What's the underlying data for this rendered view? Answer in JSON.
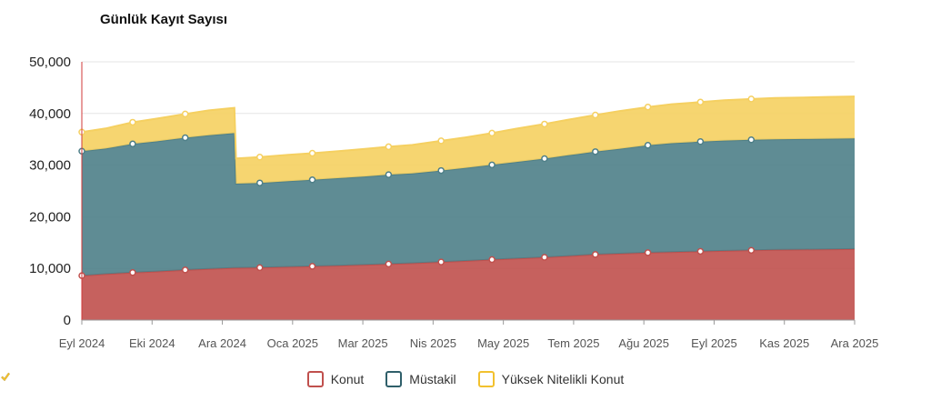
{
  "chart_data": {
    "type": "area",
    "title": "Günlük Kayıt Sayısı",
    "stacked": true,
    "x_ticks": [
      "Eyl 2024",
      "Eki 2024",
      "Ara 2024",
      "Oca 2025",
      "Mar 2025",
      "Nis 2025",
      "May 2025",
      "Tem 2025",
      "Ağu 2025",
      "Eyl 2025",
      "Kas 2025",
      "Ara 2025"
    ],
    "y_ticks": [
      "0",
      "10,000",
      "20,000",
      "30,000",
      "40,000",
      "50,000"
    ],
    "ylim": [
      0,
      50000
    ],
    "grid": true,
    "legend_position": "bottom",
    "x": [
      "2024-09-01",
      "2024-09-15",
      "2024-10-01",
      "2024-10-15",
      "2024-11-01",
      "2024-11-15",
      "2024-11-30",
      "2024-12-01",
      "2024-12-15",
      "2025-01-01",
      "2025-01-15",
      "2025-02-01",
      "2025-02-15",
      "2025-03-01",
      "2025-03-15",
      "2025-04-01",
      "2025-04-15",
      "2025-05-01",
      "2025-05-15",
      "2025-06-01",
      "2025-06-15",
      "2025-07-01",
      "2025-07-15",
      "2025-08-01",
      "2025-08-15",
      "2025-09-01",
      "2025-09-15",
      "2025-10-01",
      "2025-10-15",
      "2025-11-01",
      "2025-11-15",
      "2025-12-01"
    ],
    "marker_x": [
      "2024-09-01",
      "2024-10-01",
      "2024-11-01",
      "2024-12-15",
      "2025-01-15",
      "2025-03-01",
      "2025-04-01",
      "2025-05-01",
      "2025-06-01",
      "2025-07-01",
      "2025-08-01",
      "2025-09-01",
      "2025-10-01"
    ],
    "series": [
      {
        "name": "Konut",
        "color": "#c0504d",
        "values": [
          8600,
          8900,
          9200,
          9400,
          9700,
          9900,
          10100,
          10100,
          10150,
          10300,
          10400,
          10550,
          10700,
          10850,
          11000,
          11250,
          11450,
          11700,
          11900,
          12150,
          12400,
          12700,
          12850,
          13050,
          13150,
          13300,
          13400,
          13500,
          13600,
          13650,
          13700,
          13750
        ]
      },
      {
        "name": "Müstakil",
        "color": "#4e7f88",
        "values": [
          24100,
          24300,
          24900,
          25200,
          25600,
          25900,
          26100,
          16300,
          16400,
          16600,
          16750,
          16950,
          17100,
          17300,
          17400,
          17700,
          18000,
          18350,
          18700,
          19100,
          19500,
          19900,
          20300,
          20800,
          21100,
          21250,
          21350,
          21400,
          21400,
          21400,
          21400,
          21400
        ]
      },
      {
        "name": "Yüksek Nitelikli Konut",
        "color": "#f5d061",
        "values": [
          3700,
          3900,
          4200,
          4400,
          4600,
          4800,
          4900,
          4900,
          5000,
          5100,
          5150,
          5250,
          5350,
          5400,
          5500,
          5750,
          5900,
          6150,
          6450,
          6700,
          6900,
          7100,
          7300,
          7400,
          7550,
          7650,
          7800,
          7900,
          8000,
          8050,
          8100,
          8150
        ]
      }
    ]
  },
  "legend": [
    {
      "label": "Konut",
      "color": "#c0504d"
    },
    {
      "label": "Müstakil",
      "color": "#2f5f6a"
    },
    {
      "label": "Yüksek Nitelikli Konut",
      "color": "#f2c12e"
    }
  ]
}
